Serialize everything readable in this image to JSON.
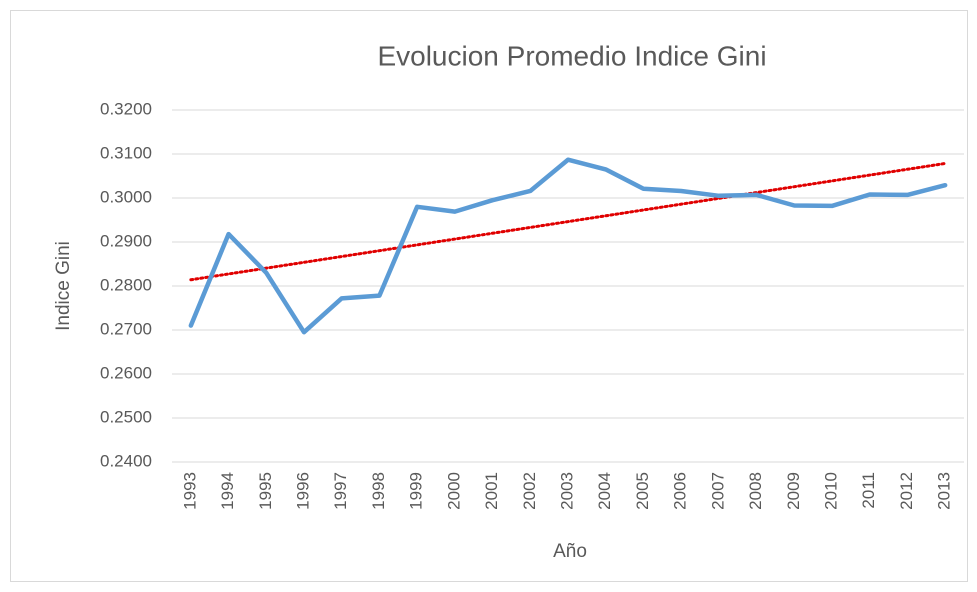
{
  "chart_data": {
    "type": "line",
    "title": "Evolucion Promedio Indice Gini",
    "xlabel": "Año",
    "ylabel": "Indice Gini",
    "categories": [
      "1993",
      "1994",
      "1995",
      "1996",
      "1997",
      "1998",
      "1999",
      "2000",
      "2001",
      "2002",
      "2003",
      "2004",
      "2005",
      "2006",
      "2007",
      "2008",
      "2009",
      "2010",
      "2011",
      "2012",
      "2013"
    ],
    "series": [
      {
        "name": "Indice Gini",
        "color": "#5b9bd5",
        "values": [
          0.271,
          0.2918,
          0.283,
          0.2695,
          0.2772,
          0.2778,
          0.298,
          0.2969,
          0.2995,
          0.3016,
          0.3087,
          0.3065,
          0.3021,
          0.3016,
          0.3005,
          0.3007,
          0.2983,
          0.2982,
          0.3008,
          0.3007,
          0.3029
        ]
      }
    ],
    "trendline": {
      "type": "linear",
      "color": "#e00000"
    },
    "ylim": [
      0.24,
      0.32
    ],
    "yticks": [
      {
        "value": 0.24,
        "label": "0.2400"
      },
      {
        "value": 0.25,
        "label": "0.2500"
      },
      {
        "value": 0.26,
        "label": "0.2600"
      },
      {
        "value": 0.27,
        "label": "0.2700"
      },
      {
        "value": 0.28,
        "label": "0.2800"
      },
      {
        "value": 0.29,
        "label": "0.2900"
      },
      {
        "value": 0.3,
        "label": "0.3000"
      },
      {
        "value": 0.31,
        "label": "0.3100"
      },
      {
        "value": 0.32,
        "label": "0.3200"
      }
    ],
    "grid": true
  }
}
